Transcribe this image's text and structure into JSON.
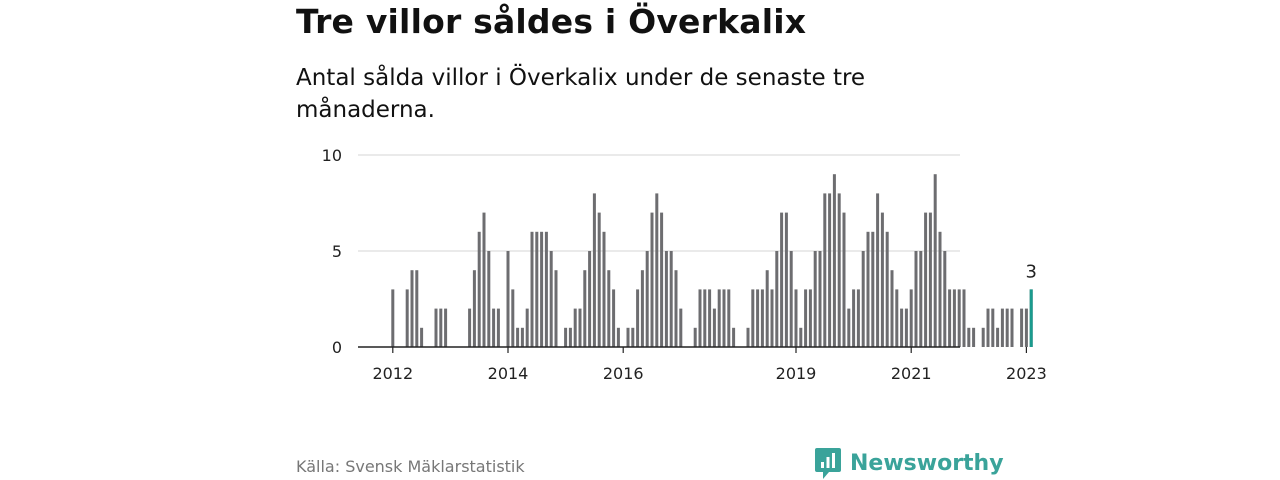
{
  "title": "Tre villor såldes i Överkalix",
  "subtitle": "Antal sålda villor i Överkalix under de senaste tre månaderna.",
  "source": "Källa: Svensk Mäklarstatistik",
  "brand": {
    "name": "Newsworthy",
    "icon": "newsworthy-logo-icon",
    "color": "#3aa39a"
  },
  "chart_data": {
    "type": "bar",
    "title": "",
    "xlabel": "",
    "ylabel": "",
    "ylim": [
      0,
      10
    ],
    "yticks": [
      0,
      5,
      10
    ],
    "grid": true,
    "xticks": [
      {
        "label": "2012",
        "index": 1
      },
      {
        "label": "2014",
        "index": 25
      },
      {
        "label": "2016",
        "index": 49
      },
      {
        "label": "2019",
        "index": 85
      },
      {
        "label": "2021",
        "index": 109
      },
      {
        "label": "2023",
        "index": 133
      }
    ],
    "values": [
      0,
      3,
      0,
      0,
      3,
      4,
      4,
      1,
      0,
      0,
      2,
      2,
      2,
      0,
      0,
      0,
      0,
      2,
      4,
      6,
      7,
      5,
      2,
      2,
      0,
      5,
      3,
      1,
      1,
      2,
      6,
      6,
      6,
      6,
      5,
      4,
      0,
      1,
      1,
      2,
      2,
      4,
      5,
      8,
      7,
      6,
      4,
      3,
      1,
      0,
      1,
      1,
      3,
      4,
      5,
      7,
      8,
      7,
      5,
      5,
      4,
      2,
      0,
      0,
      1,
      3,
      3,
      3,
      2,
      3,
      3,
      3,
      1,
      0,
      0,
      1,
      3,
      3,
      3,
      4,
      3,
      5,
      7,
      7,
      5,
      3,
      1,
      3,
      3,
      5,
      5,
      8,
      8,
      9,
      8,
      7,
      2,
      3,
      3,
      5,
      6,
      6,
      8,
      7,
      6,
      4,
      3,
      2,
      2,
      3,
      5,
      5,
      7,
      7,
      9,
      6,
      5,
      3,
      3,
      3,
      3,
      1,
      1,
      0,
      1,
      2,
      2,
      1,
      2,
      2,
      2,
      0,
      2,
      2,
      3
    ],
    "highlight": {
      "index": 134,
      "value": 3,
      "label": "3",
      "color": "#1a9b8e"
    },
    "bar_color": "#6d6d70"
  }
}
